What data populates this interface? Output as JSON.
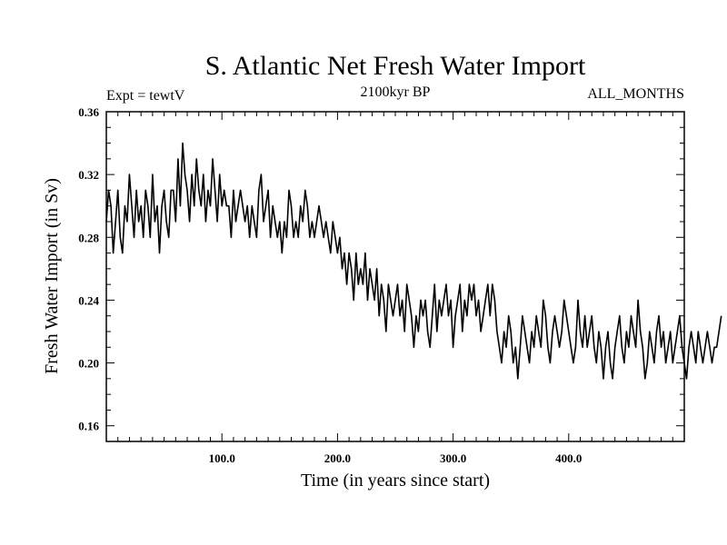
{
  "chart_data": {
    "type": "line",
    "title": "S. Atlantic Net Fresh Water Import",
    "subtitle": "2100kyr BP",
    "left_annotation": "Expt = tewtV",
    "right_annotation": "ALL_MONTHS",
    "xlabel": "Time (in years since start)",
    "ylabel": "Fresh Water Import (in Sv)",
    "xlim": [
      0,
      500
    ],
    "ylim": [
      0.15,
      0.36
    ],
    "x_ticks": [
      100,
      200,
      300,
      400
    ],
    "x_tick_labels": [
      "100.0",
      "200.0",
      "300.0",
      "400.0"
    ],
    "y_ticks": [
      0.16,
      0.2,
      0.24,
      0.28,
      0.32,
      0.36
    ],
    "y_tick_labels": [
      "0.16",
      "0.20",
      "0.24",
      "0.28",
      "0.32",
      "0.36"
    ],
    "grid": false,
    "series": [
      {
        "name": "S. Atlantic Net Fresh Water Import",
        "x_start": 0,
        "x_step": 2,
        "values": [
          0.29,
          0.31,
          0.3,
          0.27,
          0.29,
          0.31,
          0.28,
          0.27,
          0.3,
          0.29,
          0.32,
          0.3,
          0.28,
          0.31,
          0.29,
          0.3,
          0.28,
          0.31,
          0.3,
          0.28,
          0.32,
          0.29,
          0.3,
          0.27,
          0.3,
          0.31,
          0.29,
          0.28,
          0.31,
          0.31,
          0.29,
          0.33,
          0.3,
          0.34,
          0.32,
          0.31,
          0.29,
          0.32,
          0.3,
          0.33,
          0.31,
          0.3,
          0.32,
          0.29,
          0.31,
          0.3,
          0.33,
          0.31,
          0.29,
          0.32,
          0.3,
          0.31,
          0.3,
          0.3,
          0.28,
          0.31,
          0.29,
          0.3,
          0.31,
          0.3,
          0.29,
          0.3,
          0.28,
          0.3,
          0.29,
          0.28,
          0.31,
          0.32,
          0.29,
          0.3,
          0.31,
          0.28,
          0.3,
          0.29,
          0.28,
          0.29,
          0.27,
          0.29,
          0.28,
          0.31,
          0.3,
          0.28,
          0.29,
          0.28,
          0.3,
          0.29,
          0.31,
          0.3,
          0.28,
          0.29,
          0.28,
          0.29,
          0.3,
          0.29,
          0.28,
          0.29,
          0.28,
          0.27,
          0.29,
          0.28,
          0.27,
          0.28,
          0.26,
          0.27,
          0.25,
          0.27,
          0.26,
          0.24,
          0.27,
          0.25,
          0.26,
          0.25,
          0.27,
          0.24,
          0.26,
          0.25,
          0.24,
          0.26,
          0.23,
          0.25,
          0.24,
          0.22,
          0.25,
          0.24,
          0.23,
          0.24,
          0.25,
          0.23,
          0.24,
          0.22,
          0.25,
          0.24,
          0.23,
          0.21,
          0.23,
          0.22,
          0.24,
          0.23,
          0.24,
          0.22,
          0.21,
          0.23,
          0.25,
          0.22,
          0.24,
          0.23,
          0.24,
          0.25,
          0.23,
          0.24,
          0.21,
          0.23,
          0.24,
          0.25,
          0.22,
          0.24,
          0.23,
          0.25,
          0.24,
          0.25,
          0.23,
          0.24,
          0.22,
          0.23,
          0.24,
          0.25,
          0.23,
          0.25,
          0.24,
          0.22,
          0.21,
          0.2,
          0.22,
          0.21,
          0.23,
          0.22,
          0.2,
          0.21,
          0.19,
          0.21,
          0.23,
          0.22,
          0.21,
          0.2,
          0.22,
          0.21,
          0.23,
          0.22,
          0.21,
          0.24,
          0.23,
          0.21,
          0.2,
          0.22,
          0.23,
          0.22,
          0.21,
          0.22,
          0.24,
          0.23,
          0.22,
          0.21,
          0.2,
          0.21,
          0.24,
          0.22,
          0.21,
          0.23,
          0.21,
          0.22,
          0.23,
          0.21,
          0.2,
          0.22,
          0.21,
          0.19,
          0.21,
          0.22,
          0.2,
          0.19,
          0.21,
          0.22,
          0.23,
          0.21,
          0.2,
          0.22,
          0.21,
          0.23,
          0.22,
          0.21,
          0.24,
          0.22,
          0.21,
          0.19,
          0.2,
          0.22,
          0.21,
          0.2,
          0.22,
          0.23,
          0.21,
          0.22,
          0.2,
          0.21,
          0.22,
          0.2,
          0.21,
          0.22,
          0.23,
          0.21,
          0.2,
          0.19,
          0.21,
          0.22,
          0.21,
          0.2,
          0.22,
          0.21,
          0.2,
          0.21,
          0.22,
          0.21,
          0.2,
          0.21,
          0.21,
          0.22,
          0.23
        ]
      }
    ]
  }
}
